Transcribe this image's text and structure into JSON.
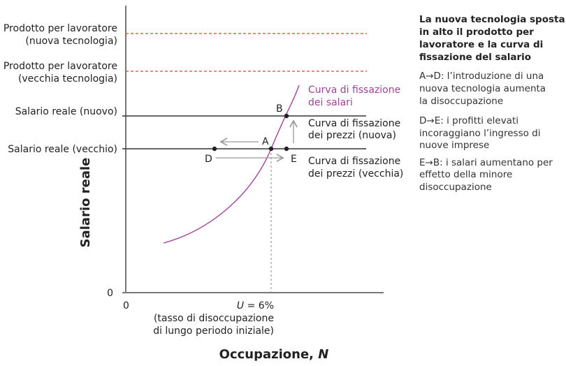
{
  "left_labels": {
    "ppl_new_1": "Prodotto per lavoratore",
    "ppl_new_2": "(nuova tecnologia)",
    "ppl_old_1": "Prodotto per lavoratore",
    "ppl_old_2": "(vecchia tecnologia)",
    "wage_new": "Salario reale (nuovo)",
    "wage_old": "Salario reale (vecchio)"
  },
  "curves": {
    "wage_setting_1": "Curva di fissazione",
    "wage_setting_2": "dei salari",
    "price_new_1": "Curva di fissazione",
    "price_new_2": "dei prezzi (nuova)",
    "price_old_1": "Curva di fissazione",
    "price_old_2": "dei prezzi (vecchia)"
  },
  "points": {
    "A": "A",
    "B": "B",
    "D": "D",
    "E": "E"
  },
  "axes": {
    "y_label": "Salario reale",
    "x_label": "Occupazione, ",
    "x_label_var": "N",
    "y_zero": "0",
    "x_zero": "0",
    "u_var": "U",
    "u_value": " = 6%",
    "u_note_1": "(tasso di disoccupazione",
    "u_note_2": "di lungo periodo iniziale)"
  },
  "panel": {
    "title": [
      "La nuova tecnologia sposta",
      "in alto il prodotto per",
      "lavoratore e la curva di",
      "fissazione del salario"
    ],
    "steps": [
      [
        "A→D: l’introduzione di una",
        "nuova tecnologia aumenta",
        "la disoccupazione"
      ],
      [
        "D→E: i profitti elevati",
        "incoraggiano l’ingresso di",
        "nuove imprese"
      ],
      [
        "E→B: i salari aumentano per",
        "effetto della minore",
        "disoccupazione"
      ]
    ]
  },
  "colors": {
    "wage_curve": "#a0429a",
    "dashed": "#e0442c",
    "axis": "#777777",
    "line": "#333333",
    "arrow": "#999999"
  }
}
